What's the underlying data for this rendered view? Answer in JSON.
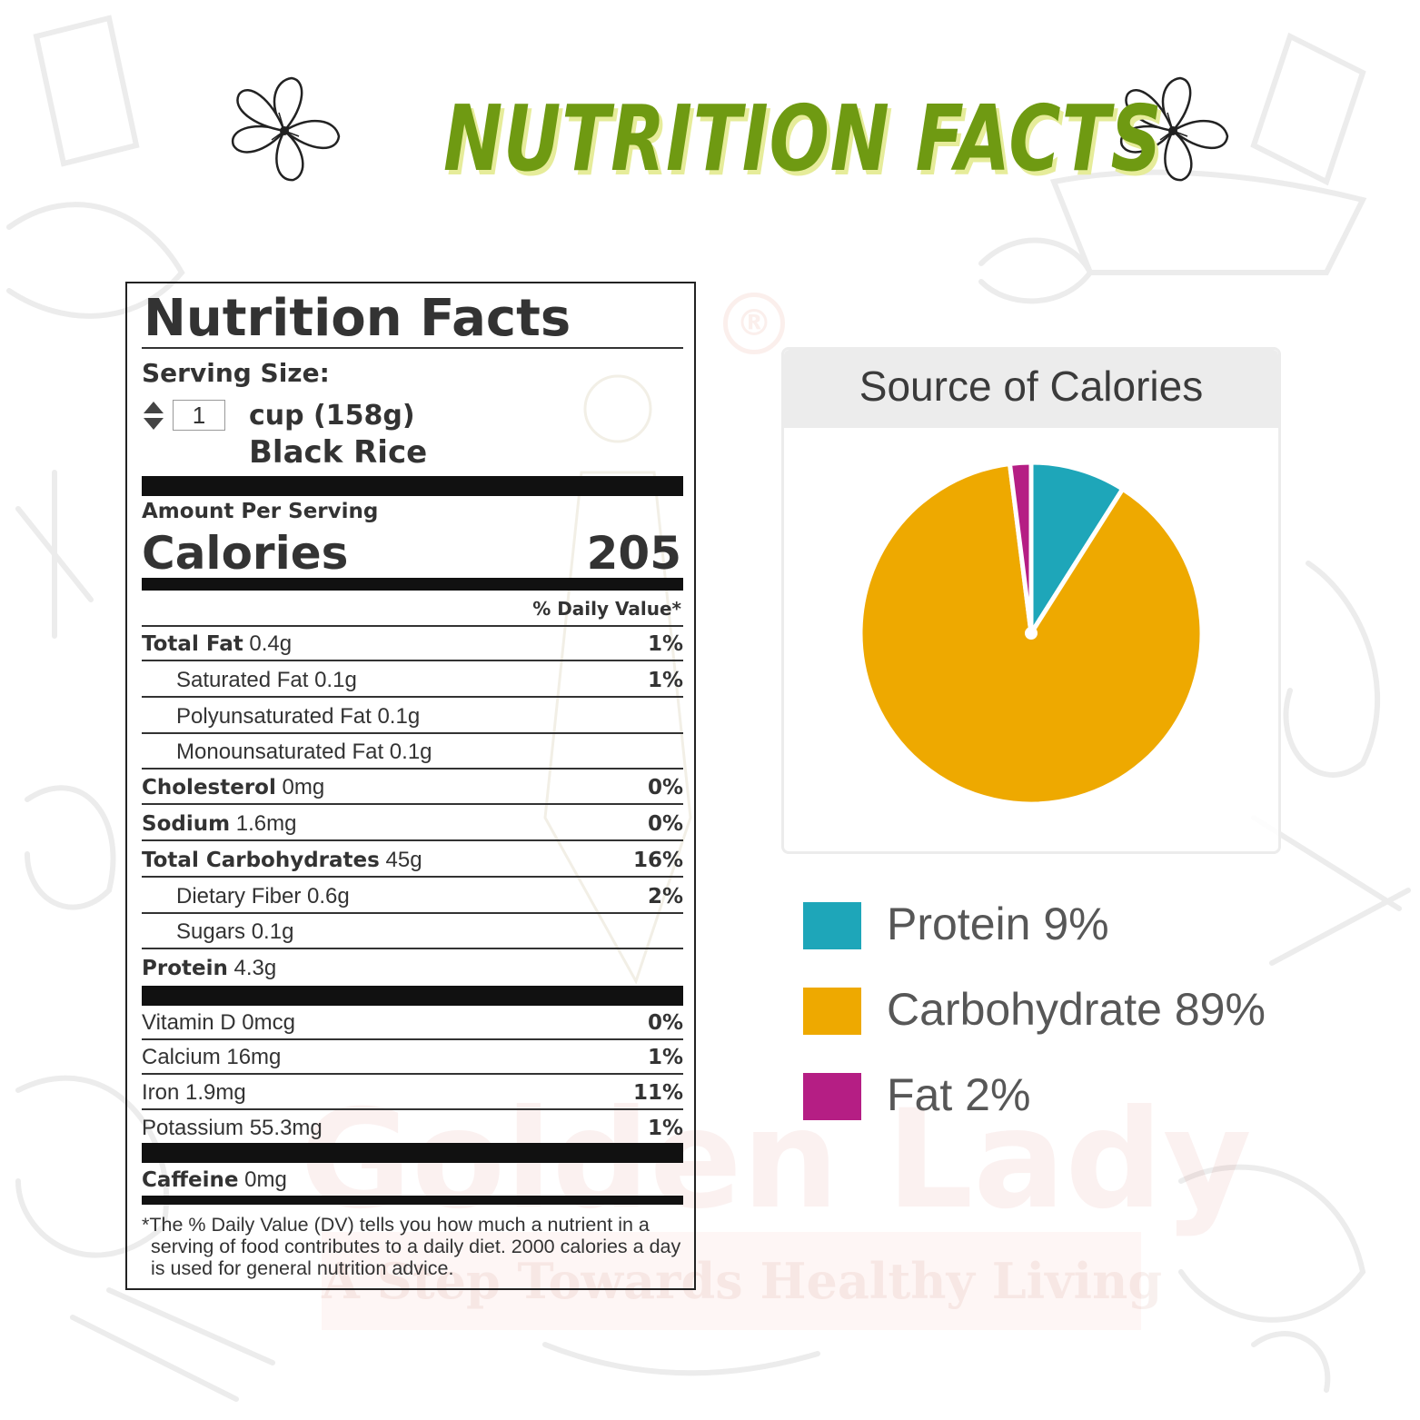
{
  "header": {
    "title": "NUTRITION FACTS"
  },
  "label": {
    "title": "Nutrition Facts",
    "serving_size_label": "Serving Size:",
    "serving_qty": "1",
    "serving_unit": "cup (158g)",
    "serving_food": "Black Rice",
    "amount_per_serving": "Amount Per Serving",
    "calories_label": "Calories",
    "calories_value": "205",
    "daily_value_header": "% Daily Value*",
    "nutrients": [
      {
        "name": "Total Fat",
        "amount": "0.4g",
        "dv": "1%"
      },
      {
        "name": "Saturated Fat 0.1g",
        "amount": "",
        "dv": "1%"
      },
      {
        "name": "Polyunsaturated Fat 0.1g",
        "amount": "",
        "dv": ""
      },
      {
        "name": "Monounsaturated Fat 0.1g",
        "amount": "",
        "dv": ""
      },
      {
        "name": "Cholesterol",
        "amount": "0mg",
        "dv": "0%"
      },
      {
        "name": "Sodium",
        "amount": "1.6mg",
        "dv": "0%"
      },
      {
        "name": "Total Carbohydrates",
        "amount": "45g",
        "dv": "16%"
      },
      {
        "name": "Dietary Fiber 0.6g",
        "amount": "",
        "dv": "2%"
      },
      {
        "name": "Sugars 0.1g",
        "amount": "",
        "dv": ""
      },
      {
        "name": "Protein",
        "amount": "4.3g",
        "dv": ""
      }
    ],
    "vitamins": [
      {
        "name": "Vitamin D 0mcg",
        "dv": "0%"
      },
      {
        "name": "Calcium 16mg",
        "dv": "1%"
      },
      {
        "name": "Iron 1.9mg",
        "dv": "11%"
      },
      {
        "name": "Potassium 55.3mg",
        "dv": "1%"
      }
    ],
    "caffeine": {
      "name": "Caffeine",
      "amount": "0mg"
    },
    "footnote_mark": "*",
    "footnote": "The % Daily Value (DV) tells you how much a nutrient in a serving of food contributes to a daily diet. 2000 calories a day is used for general nutrition advice."
  },
  "chart_data": {
    "type": "pie",
    "title": "Source of Calories",
    "series": [
      {
        "name": "Protein",
        "value": 9,
        "color": "#1ea6b9"
      },
      {
        "name": "Carbohydrate",
        "value": 89,
        "color": "#eea900"
      },
      {
        "name": "Fat",
        "value": 2,
        "color": "#b51e84"
      }
    ],
    "legend": [
      {
        "label": "Protein 9%",
        "color": "#1ea6b9"
      },
      {
        "label": "Carbohydrate 89%",
        "color": "#eea900"
      },
      {
        "label": "Fat 2%",
        "color": "#b51e84"
      }
    ],
    "legend_position": "bottom"
  },
  "watermark": {
    "brand": "Golden Lady",
    "tagline": "A Step Towards Healthy Living",
    "registered": "®"
  },
  "colors": {
    "title_green": "#6f9a12",
    "title_shadow": "#e6ec9a"
  }
}
